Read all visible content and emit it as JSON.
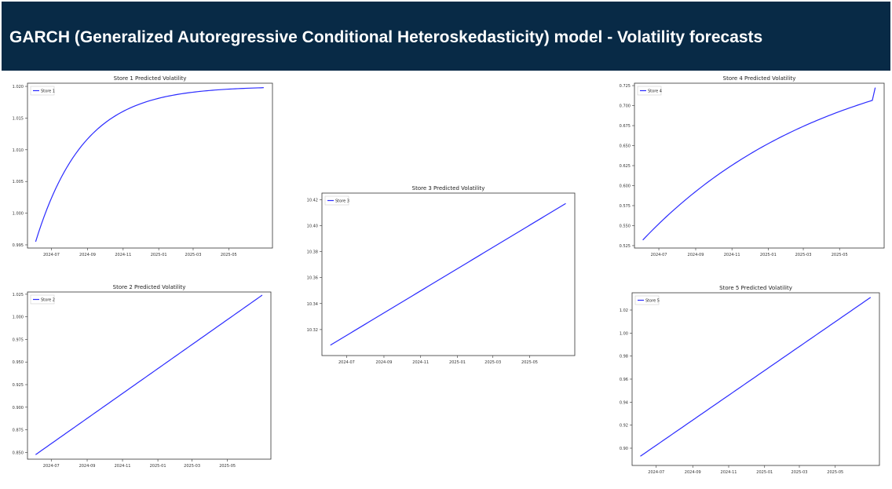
{
  "header": {
    "title": "GARCH (Generalized Autoregressive Conditional Heteroskedasticity) model - Volatility forecasts"
  },
  "colors": {
    "header_bg": "#082a46",
    "line": "#2b2bff"
  },
  "x_ticks": [
    "2024-07",
    "2024-09",
    "2024-11",
    "2025-01",
    "2025-03",
    "2025-05"
  ],
  "chart_data": [
    {
      "type": "line",
      "title": "Store 1 Predicted Volatility",
      "legend": "Store 1",
      "legend_position": "top-left",
      "x_start": "2024-06-04",
      "x_end": "2025-06-30",
      "xlim": [
        "2024-05-21",
        "2025-07-15"
      ],
      "ylim": [
        0.9945,
        1.0205
      ],
      "yticks": [
        0.995,
        1.0,
        1.005,
        1.01,
        1.015,
        1.02
      ],
      "ytick_labels": [
        "0.995",
        "1.000",
        "1.005",
        "1.010",
        "1.015",
        "1.020"
      ],
      "curve": "exp",
      "y_start": 0.9955,
      "y_end": 1.0198,
      "y_asymptote": 1.02,
      "rate": 0.14
    },
    {
      "type": "line",
      "title": "Store 2 Predicted Volatility",
      "legend": "Store 2",
      "legend_position": "top-left",
      "x_start": "2024-06-04",
      "x_end": "2025-06-30",
      "xlim": [
        "2024-05-21",
        "2025-07-15"
      ],
      "ylim": [
        0.8425,
        1.0275
      ],
      "yticks": [
        0.85,
        0.875,
        0.9,
        0.925,
        0.95,
        0.975,
        1.0,
        1.025
      ],
      "ytick_labels": [
        "0.850",
        "0.875",
        "0.900",
        "0.925",
        "0.950",
        "0.975",
        "1.000",
        "1.025"
      ],
      "curve": "linear",
      "y_start": 0.8475,
      "y_end": 1.024
    },
    {
      "type": "line",
      "title": "Store 3 Predicted Volatility",
      "legend": "Store 3",
      "legend_position": "top-left",
      "x_start": "2024-06-04",
      "x_end": "2025-06-30",
      "xlim": [
        "2024-05-21",
        "2025-07-15"
      ],
      "ylim": [
        10.3,
        10.425
      ],
      "yticks": [
        10.32,
        10.34,
        10.36,
        10.38,
        10.4,
        10.42
      ],
      "ytick_labels": [
        "10.32",
        "10.34",
        "10.36",
        "10.38",
        "10.40",
        "10.42"
      ],
      "curve": "linear",
      "y_start": 10.308,
      "y_end": 10.417
    },
    {
      "type": "line",
      "title": "Store 4 Predicted Volatility",
      "legend": "Store 4",
      "legend_position": "top-left",
      "x_start": "2024-06-04",
      "x_end": "2025-06-30",
      "xlim": [
        "2024-05-21",
        "2025-07-15"
      ],
      "ylim": [
        0.522,
        0.728
      ],
      "yticks": [
        0.525,
        0.55,
        0.575,
        0.6,
        0.625,
        0.65,
        0.675,
        0.7,
        0.725
      ],
      "ytick_labels": [
        "0.525",
        "0.550",
        "0.575",
        "0.600",
        "0.625",
        "0.650",
        "0.675",
        "0.700",
        "0.725"
      ],
      "curve": "exp",
      "y_start": 0.532,
      "y_end": 0.7225,
      "y_asymptote": 0.78,
      "rate": 0.0025
    },
    {
      "type": "line",
      "title": "Store 5 Predicted Volatility",
      "legend": "Store 5",
      "legend_position": "top-left",
      "x_start": "2024-06-04",
      "x_end": "2025-06-30",
      "xlim": [
        "2024-05-21",
        "2025-07-15"
      ],
      "ylim": [
        0.885,
        1.035
      ],
      "yticks": [
        0.9,
        0.92,
        0.94,
        0.96,
        0.98,
        1.0,
        1.02
      ],
      "ytick_labels": [
        "0.90",
        "0.92",
        "0.94",
        "0.96",
        "0.98",
        "1.00",
        "1.02"
      ],
      "curve": "linear",
      "y_start": 0.893,
      "y_end": 1.031
    }
  ]
}
